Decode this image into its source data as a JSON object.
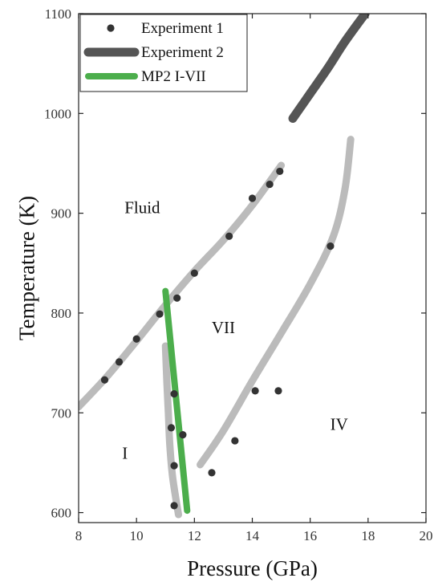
{
  "chart_data": {
    "type": "scatter",
    "xlabel": "Pressure (GPa)",
    "ylabel": "Temperature (K)",
    "xlim": [
      8,
      20
    ],
    "ylim": [
      590,
      1100
    ],
    "xticks": [
      8,
      10,
      12,
      14,
      16,
      18,
      20
    ],
    "yticks": [
      600,
      700,
      800,
      900,
      1000,
      1100
    ],
    "grid": false,
    "legend": {
      "position": "top-left",
      "entries": [
        {
          "name": "Experiment 1",
          "style": "dot",
          "color": "#333333"
        },
        {
          "name": "Experiment 2",
          "style": "line",
          "color": "#555555"
        },
        {
          "name": "MP2 I-VII",
          "style": "line",
          "color": "#4cae4c"
        }
      ]
    },
    "series": [
      {
        "name": "Experiment 1",
        "kind": "points",
        "color": "#333333",
        "points": [
          [
            8.9,
            733
          ],
          [
            9.4,
            751
          ],
          [
            10.0,
            774
          ],
          [
            10.8,
            799
          ],
          [
            11.4,
            815
          ],
          [
            12.0,
            840
          ],
          [
            13.2,
            877
          ],
          [
            14.0,
            915
          ],
          [
            14.6,
            929
          ],
          [
            14.95,
            942
          ],
          [
            11.3,
            719
          ],
          [
            11.2,
            685
          ],
          [
            11.6,
            678
          ],
          [
            11.3,
            647
          ],
          [
            11.3,
            607
          ],
          [
            12.6,
            640
          ],
          [
            13.4,
            672
          ],
          [
            14.1,
            722
          ],
          [
            14.9,
            722
          ],
          [
            16.7,
            867
          ]
        ]
      },
      {
        "name": "Experiment 2",
        "kind": "line",
        "color": "#555555",
        "points": [
          [
            15.4,
            995
          ],
          [
            16.0,
            1020
          ],
          [
            16.6,
            1045
          ],
          [
            17.2,
            1072
          ],
          [
            17.9,
            1100
          ]
        ]
      },
      {
        "name": "MP2 I-VII",
        "kind": "line",
        "color": "#4cae4c",
        "points": [
          [
            11.0,
            822
          ],
          [
            11.75,
            602
          ]
        ]
      },
      {
        "name": "",
        "kind": "boundary",
        "color": "#bbbbbb",
        "points": [
          [
            8.0,
            706
          ],
          [
            9.0,
            737
          ],
          [
            10.0,
            772
          ],
          [
            11.0,
            808
          ],
          [
            12.0,
            842
          ],
          [
            13.0,
            873
          ],
          [
            14.0,
            908
          ],
          [
            15.0,
            948
          ]
        ]
      },
      {
        "name": "",
        "kind": "boundary",
        "color": "#bbbbbb",
        "points": [
          [
            11.0,
            767
          ],
          [
            11.05,
            730
          ],
          [
            11.1,
            700
          ],
          [
            11.15,
            668
          ],
          [
            11.25,
            635
          ],
          [
            11.45,
            598
          ]
        ]
      },
      {
        "name": "",
        "kind": "boundary",
        "color": "#bbbbbb",
        "points": [
          [
            12.2,
            648
          ],
          [
            13.0,
            682
          ],
          [
            14.0,
            732
          ],
          [
            15.0,
            780
          ],
          [
            16.0,
            829
          ],
          [
            16.8,
            877
          ],
          [
            17.2,
            924
          ],
          [
            17.4,
            974
          ]
        ]
      }
    ],
    "annotations": [
      {
        "text": "Fluid",
        "x": 10.2,
        "y": 900
      },
      {
        "text": "VII",
        "x": 13.0,
        "y": 780
      },
      {
        "text": "I",
        "x": 9.6,
        "y": 654
      },
      {
        "text": "IV",
        "x": 17.0,
        "y": 683
      }
    ]
  }
}
